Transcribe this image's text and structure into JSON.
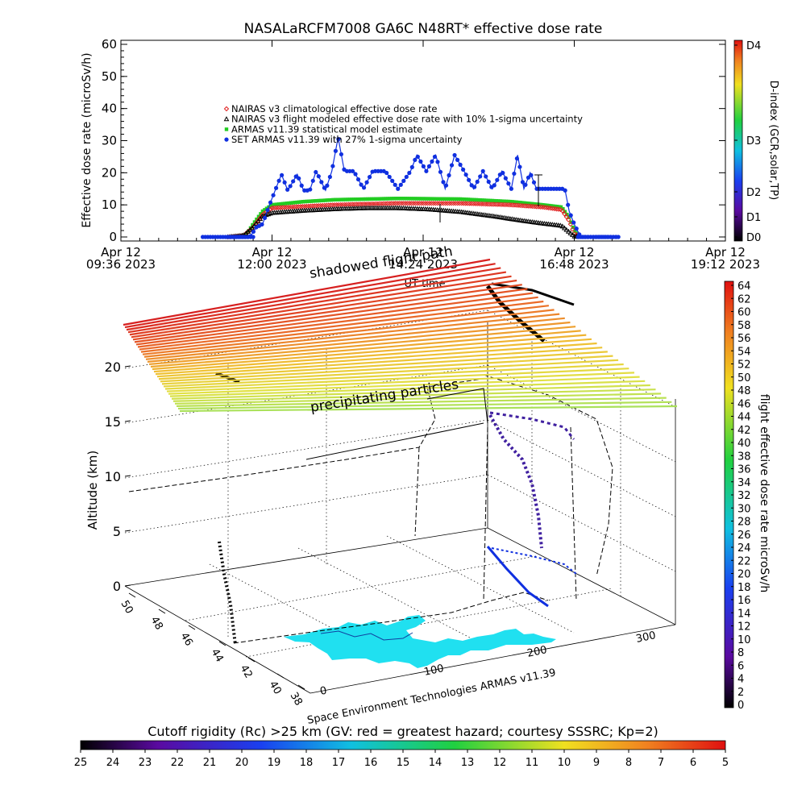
{
  "chart_data": [
    {
      "type": "line",
      "title": "NASALaRCFM7008   GA6C N48RT* effective dose rate",
      "ylabel": "Effective dose rate  (microSv/h)",
      "y_ticks": [
        "0",
        "10",
        "20",
        "30",
        "40",
        "50",
        "60"
      ],
      "ylim": [
        0,
        60
      ],
      "x_ticks": [
        {
          "line1": "Apr 12",
          "line2": "09:36 2023"
        },
        {
          "line1": "Apr 12",
          "line2": "12:00 2023"
        },
        {
          "line1": "Apr 12",
          "line2": "14:24 2023"
        },
        {
          "line1": "Apr 12",
          "line2": "16:48 2023"
        },
        {
          "line1": "Apr 12",
          "line2": "19:12 2023"
        }
      ],
      "xlabel": "UT time",
      "xlim_hours": [
        9.6,
        19.2
      ],
      "right_axis": {
        "label": "D-index (GCR,solar,TP)",
        "ticks": [
          "D0",
          "D1",
          "D2",
          "D3",
          "D4"
        ]
      },
      "legend": [
        {
          "symbol": "diamond",
          "color": "#e02020",
          "label": "NAIRAS v3 climatological effective dose rate"
        },
        {
          "symbol": "triangle",
          "color": "#000000",
          "label": "NAIRAS v3 flight modeled effective dose rate with 10% 1-sigma uncertainty"
        },
        {
          "symbol": "asterisk",
          "color": "#22cc22",
          "label": "ARMAS v11.39 statistical model estimate"
        },
        {
          "symbol": "dot",
          "color": "#1030e0",
          "label": "SET ARMAS v11.39 with 27% 1-sigma uncertainty"
        }
      ],
      "legend_position": "upper-left",
      "series": [
        {
          "name": "NAIRAS v3 climatological effective dose rate",
          "color": "#e02020",
          "points": [
            [
              11.3,
              0
            ],
            [
              11.55,
              0.5
            ],
            [
              11.7,
              3
            ],
            [
              11.85,
              7
            ],
            [
              12.0,
              9
            ],
            [
              12.5,
              9.5
            ],
            [
              13.0,
              10
            ],
            [
              14.0,
              10.5
            ],
            [
              15.0,
              10.5
            ],
            [
              15.8,
              10
            ],
            [
              16.3,
              9.3
            ],
            [
              16.6,
              8.5
            ],
            [
              16.72,
              5
            ],
            [
              16.8,
              1
            ],
            [
              16.9,
              0
            ]
          ]
        },
        {
          "name": "NAIRAS v3 flight modeled effective dose rate with 10% 1-sigma uncertainty",
          "color": "#000000",
          "points": [
            [
              11.3,
              0
            ],
            [
              11.55,
              0.5
            ],
            [
              11.7,
              3
            ],
            [
              11.85,
              6.5
            ],
            [
              12.0,
              7.5
            ],
            [
              12.5,
              8.2
            ],
            [
              13.0,
              8.7
            ],
            [
              13.5,
              9
            ],
            [
              14.0,
              9
            ],
            [
              14.5,
              8.6
            ],
            [
              15.0,
              7.8
            ],
            [
              15.5,
              6.5
            ],
            [
              16.0,
              5
            ],
            [
              16.3,
              4.2
            ],
            [
              16.6,
              3.5
            ],
            [
              16.72,
              1.5
            ],
            [
              16.8,
              0.2
            ],
            [
              16.9,
              0
            ]
          ]
        },
        {
          "name": "ARMAS v11.39 statistical model estimate",
          "color": "#22cc22",
          "points": [
            [
              11.5,
              0
            ],
            [
              11.6,
              1
            ],
            [
              11.7,
              4
            ],
            [
              11.85,
              8
            ],
            [
              12.0,
              10
            ],
            [
              12.5,
              11
            ],
            [
              13.0,
              11.6
            ],
            [
              14.0,
              12
            ],
            [
              15.0,
              11.8
            ],
            [
              15.8,
              11
            ],
            [
              16.3,
              10
            ],
            [
              16.6,
              9.3
            ],
            [
              16.72,
              6
            ],
            [
              16.8,
              2
            ],
            [
              16.9,
              0
            ]
          ]
        },
        {
          "name": "SET ARMAS v11.39 with 27% 1-sigma uncertainty",
          "color": "#1030e0",
          "points": [
            [
              11.3,
              0
            ],
            [
              11.65,
              0
            ],
            [
              11.75,
              3
            ],
            [
              11.85,
              4
            ],
            [
              11.95,
              9.5
            ],
            [
              12.05,
              14.5
            ],
            [
              12.15,
              19.5
            ],
            [
              12.25,
              14.5
            ],
            [
              12.4,
              19.5
            ],
            [
              12.5,
              14.5
            ],
            [
              12.6,
              14.5
            ],
            [
              12.7,
              20.5
            ],
            [
              12.85,
              14.5
            ],
            [
              12.95,
              20.5
            ],
            [
              13.05,
              31
            ],
            [
              13.15,
              20.5
            ],
            [
              13.3,
              20.5
            ],
            [
              13.45,
              15
            ],
            [
              13.6,
              20.5
            ],
            [
              13.8,
              20.5
            ],
            [
              14.0,
              15
            ],
            [
              14.2,
              20.5
            ],
            [
              14.3,
              25.5
            ],
            [
              14.45,
              20.5
            ],
            [
              14.6,
              25.5
            ],
            [
              14.75,
              15
            ],
            [
              14.9,
              25.5
            ],
            [
              15.05,
              20.5
            ],
            [
              15.2,
              15
            ],
            [
              15.35,
              20.5
            ],
            [
              15.5,
              15
            ],
            [
              15.65,
              20.5
            ],
            [
              15.8,
              15
            ],
            [
              15.9,
              25.5
            ],
            [
              16.0,
              15
            ],
            [
              16.1,
              20
            ],
            [
              16.2,
              15
            ],
            [
              16.35,
              15
            ],
            [
              16.5,
              15
            ],
            [
              16.65,
              15
            ],
            [
              16.72,
              8
            ],
            [
              16.8,
              4
            ],
            [
              16.9,
              0
            ],
            [
              17.5,
              0
            ]
          ]
        }
      ]
    },
    {
      "type": "scatter",
      "zlabel": "Altitude (km)",
      "z_ticks": [
        "0",
        "5",
        "10",
        "15",
        "20"
      ],
      "longitude_ticks": [
        "0",
        "100",
        "200",
        "300"
      ],
      "latitude_ticks": [
        "38",
        "40",
        "42",
        "44",
        "46",
        "48",
        "50"
      ],
      "annotations": {
        "shadowed_flight_path": "shadowed flight path",
        "precipitating_particles": "precipitating particles",
        "credit": "Space Environment Technologies ARMAS v11.39"
      },
      "dose_colorbar": {
        "label": "flight effective dose rate microSv/h",
        "ticks": [
          "0",
          "2",
          "4",
          "6",
          "8",
          "10",
          "12",
          "14",
          "16",
          "18",
          "20",
          "22",
          "24",
          "26",
          "28",
          "30",
          "32",
          "34",
          "36",
          "38",
          "40",
          "42",
          "44",
          "46",
          "48",
          "50",
          "52",
          "54",
          "56",
          "58",
          "60",
          "62",
          "64"
        ]
      },
      "rigidity_colorbar": {
        "label": "Cutoff rigidity (Rc) >25 km (GV: red = greatest hazard; courtesy SSSRC; Kp=2)",
        "ticks": [
          "25",
          "24",
          "23",
          "22",
          "21",
          "20",
          "19",
          "18",
          "17",
          "16",
          "15",
          "14",
          "13",
          "12",
          "11",
          "10",
          "9",
          "8",
          "7",
          "6",
          "5"
        ]
      }
    }
  ]
}
